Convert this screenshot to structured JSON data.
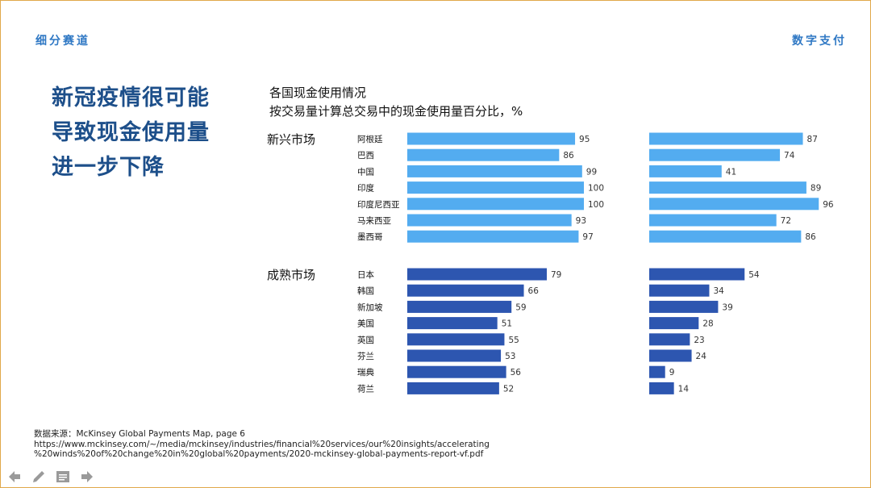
{
  "header": {
    "left_tag": "细分赛道",
    "right_tag": "数字支付"
  },
  "headline": {
    "lines": [
      "新冠疫情很可能",
      "导致现金使用量",
      "进一步下降"
    ]
  },
  "chart_data": {
    "type": "bar",
    "orientation": "horizontal",
    "title": "各国现金使用情况",
    "subtitle": "按交易量计算总交易中的现金使用量百分比，%",
    "xlim": [
      0,
      100
    ],
    "groups": [
      {
        "name": "新兴市场",
        "color": "#53acf0",
        "categories": [
          "阿根廷",
          "巴西",
          "中国",
          "印度",
          "印度尼西亚",
          "马来西亚",
          "墨西哥"
        ],
        "series": [
          {
            "name": "panel-1",
            "values": [
              95,
              86,
              99,
              100,
              100,
              93,
              97
            ],
            "labels": [
              "95",
              "86",
              "99",
              "100",
              "100",
              "93",
              "97"
            ]
          },
          {
            "name": "panel-2",
            "values": [
              87,
              74,
              41,
              89,
              96,
              72,
              86
            ],
            "labels": [
              "87",
              "74",
              "41",
              "89",
              "96",
              "72",
              "86"
            ]
          }
        ]
      },
      {
        "name": "成熟市场",
        "color": "#2d56b0",
        "categories": [
          "日本",
          "韩国",
          "新加坡",
          "美国",
          "英国",
          "芬兰",
          "瑞典",
          "荷兰"
        ],
        "series": [
          {
            "name": "panel-1",
            "values": [
              79,
              66,
              59,
              51,
              55,
              53,
              56,
              52
            ],
            "labels": [
              "79",
              "66",
              "59",
              "51",
              "55",
              "53",
              "56",
              "52"
            ]
          },
          {
            "name": "panel-2",
            "values": [
              54,
              34,
              39,
              28,
              23,
              24,
              9,
              14
            ],
            "labels": [
              "54",
              "34",
              "39",
              "28",
              "23",
              "24",
              "9",
              "14"
            ]
          }
        ]
      }
    ]
  },
  "source": {
    "line1": "数据来源：McKinsey Global Payments Map, page 6",
    "line2": "https://www.mckinsey.com/~/media/mckinsey/industries/financial%20services/our%20insights/accelerating",
    "line3": "%20winds%20of%20change%20in%20global%20payments/2020-mckinsey-global-payments-report-vf.pdf"
  },
  "toolbar": {
    "items": [
      "back-arrow-icon",
      "pen-icon",
      "notes-icon",
      "forward-arrow-icon"
    ],
    "color": "#9a9a9a"
  }
}
